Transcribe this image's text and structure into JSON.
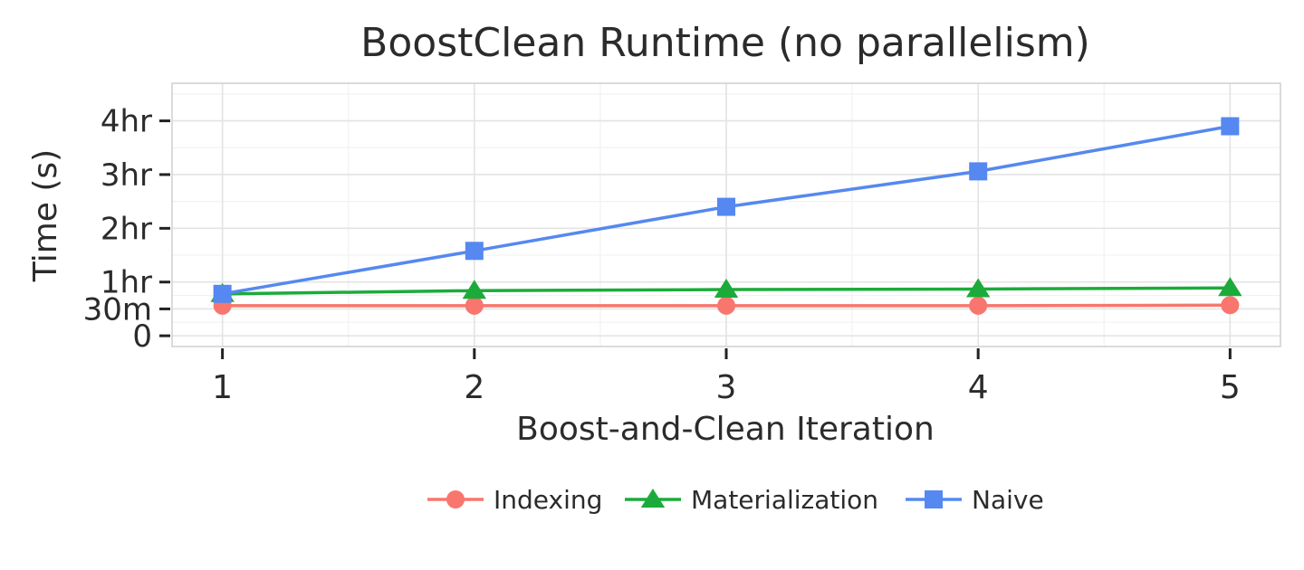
{
  "chart_data": {
    "type": "line",
    "title": "BoostClean Runtime (no parallelism)",
    "xlabel": "Boost-and-Clean Iteration",
    "ylabel": "Time (s)",
    "x": [
      1,
      2,
      3,
      4,
      5
    ],
    "xlim": [
      0.8,
      5.2
    ],
    "ylim": [
      -0.2,
      4.7
    ],
    "yticks": [
      {
        "value": 0,
        "label": "0"
      },
      {
        "value": 0.5,
        "label": "30m"
      },
      {
        "value": 1,
        "label": "1hr"
      },
      {
        "value": 2,
        "label": "2hr"
      },
      {
        "value": 3,
        "label": "3hr"
      },
      {
        "value": 4,
        "label": "4hr"
      }
    ],
    "xticks": [
      {
        "value": 1,
        "label": "1"
      },
      {
        "value": 2,
        "label": "2"
      },
      {
        "value": 3,
        "label": "3"
      },
      {
        "value": 4,
        "label": "4"
      },
      {
        "value": 5,
        "label": "5"
      }
    ],
    "grid": true,
    "legend_position": "bottom",
    "series": [
      {
        "name": "Indexing",
        "color": "#F8766D",
        "marker": "circle",
        "values": [
          0.56,
          0.56,
          0.56,
          0.56,
          0.57
        ]
      },
      {
        "name": "Materialization",
        "color": "#1CAB3A",
        "marker": "triangle",
        "values": [
          0.78,
          0.84,
          0.86,
          0.87,
          0.89
        ]
      },
      {
        "name": "Naive",
        "color": "#5588F0",
        "marker": "square",
        "values": [
          0.78,
          1.58,
          2.4,
          3.06,
          3.9
        ]
      }
    ]
  }
}
